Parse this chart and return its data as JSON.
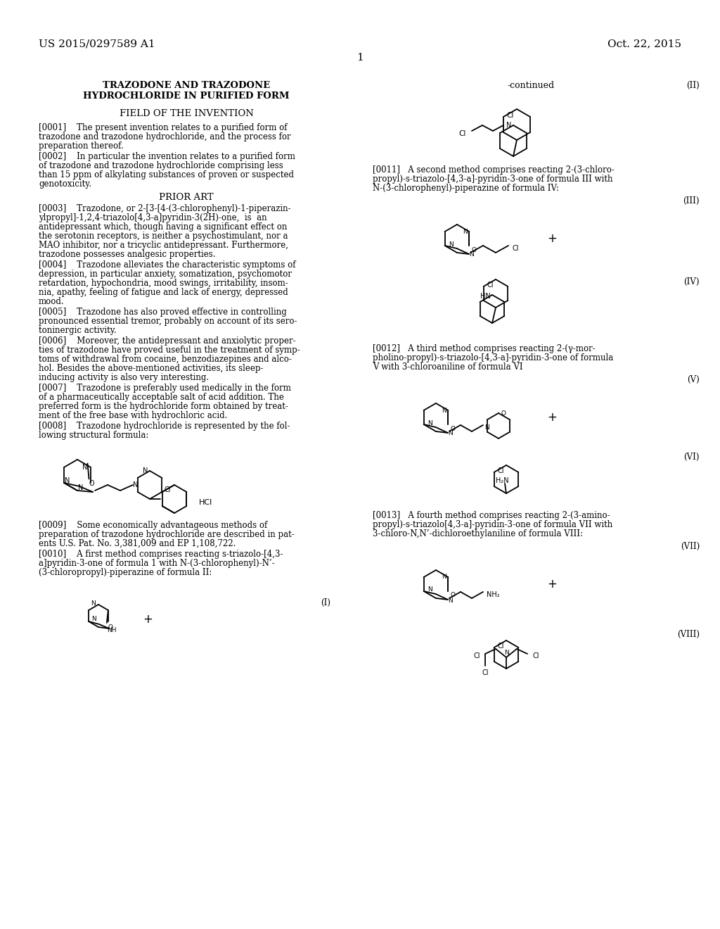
{
  "background_color": "#ffffff",
  "header_left": "US 2015/0297589 A1",
  "header_right": "Oct. 22, 2015",
  "page_number": "1",
  "continued_label": "-continued",
  "roman_II": "(II)",
  "roman_III": "(III)",
  "roman_IV": "(IV)",
  "roman_V": "(V)",
  "roman_VI": "(VI)",
  "roman_VII": "(VII)",
  "roman_VIII": "(VIII)",
  "roman_I": "(I)",
  "title_line1": "TRAZODONE AND TRAZODONE",
  "title_line2": "HYDROCHLORIDE IN PURIFIED FORM",
  "section1": "FIELD OF THE INVENTION",
  "para0001": "[0001] The present invention relates to a purified form of trazodone and trazodone hydrochloride, and the process for preparation thereof.",
  "para0002": "[0002] In particular the invention relates to a purified form of trazodone and trazodone hydrochloride comprising less than 15 ppm of alkylating substances of proven or suspected genotoxicity.",
  "section2": "PRIOR ART",
  "para0003": "[0003] Trazodone, or 2-[3-[4-(3-chlorophenyl)-1-piperazinylpropyl]-1,2,4-triazolo[4,3-a]pyridin-3(2H)-one, is an antidepressant which, though having a significant effect on the serotonin receptors, is neither a psychostimulant, nor a MAO inhibitor, nor a tricyclic antidepressant. Furthermore, trazodone possesses analgesic properties.",
  "para0004": "[0004] Trazodone alleviates the characteristic symptoms of depression, in particular anxiety, somatization, psychomotor retardation, hypochondria, mood swings, irritability, insomnia, apathy, feeling of fatigue and lack of energy, depressed mood.",
  "para0005": "[0005] Trazodone has also proved effective in controlling pronounced essential tremor, probably on account of its serotoninergic activity.",
  "para0006": "[0006] Moreover, the antidepressant and anxiolytic properties of trazodone have proved useful in the treatment of symptoms of withdrawal from cocaine, benzodiazepines and alcohol. Besides the above-mentioned activities, its sleep-inducing activity is also very interesting.",
  "para0007": "[0007] Trazodone is preferably used medically in the form of a pharmaceutically acceptable salt of acid addition. The preferred form is the hydrochloride form obtained by treatment of the free base with hydrochloric acid.",
  "para0008": "[0008] Trazodone hydrochloride is represented by the following structural formula:",
  "para0009": "[0009] Some economically advantageous methods of preparation of trazodone hydrochloride are described in patents U.S. Pat. No. 3,381,009 and EP 1,108,722.",
  "para0010": "[0010] A first method comprises reacting s-triazolo-[4,3-a]pyridin-3-one of formula 1 with N-(3-chlorophenyl)-N’-(3-chloropropyl)-piperazine of formula II:",
  "para0011": "[0011] A second method comprises reacting 2-(3-chloropropyl)-s-triazolo-[4,3-a]-pyridin-3-one of formula III with N-(3-chlorophenyl)-piperazine of formula IV:",
  "para0012": "[0012] A third method comprises reacting 2-(γ-morpholino-propyl)-s-triazolo-[4,3-a]-pyridin-3-one of formula V with 3-chloroaniline of formula VI",
  "para0013": "[0013] A fourth method comprises reacting 2-(3-aminopropyl)-s-triazolo[4,3-a]-pyridin-3-one of formula VII with 3-chloro-N,N’-dichloroethylaniline of formula VIII:"
}
